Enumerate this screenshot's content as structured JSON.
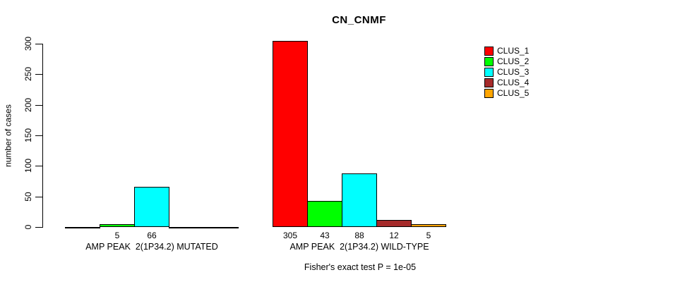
{
  "chart_data": {
    "type": "bar",
    "title": "CN_CNMF",
    "ylabel": "number of cases",
    "ylim": [
      0,
      300
    ],
    "yticks": [
      0,
      50,
      100,
      150,
      200,
      250,
      300
    ],
    "grid": false,
    "legend_position": "right-outside",
    "categories": [
      "AMP PEAK  2(1P34.2) MUTATED",
      "AMP PEAK  2(1P34.2) WILD-TYPE"
    ],
    "series": [
      {
        "name": "CLUS_1",
        "color": "#FF0000",
        "values": [
          0,
          305
        ]
      },
      {
        "name": "CLUS_2",
        "color": "#00FF00",
        "values": [
          5,
          43
        ]
      },
      {
        "name": "CLUS_3",
        "color": "#00FFFF",
        "values": [
          66,
          88
        ]
      },
      {
        "name": "CLUS_4",
        "color": "#A52A2A",
        "values": [
          0,
          12
        ]
      },
      {
        "name": "CLUS_5",
        "color": "#FFA500",
        "values": [
          0,
          5
        ]
      }
    ],
    "bar_value_labels": "shown under each nonzero bar",
    "annotation": "Fisher's exact test P = 1e-05"
  }
}
